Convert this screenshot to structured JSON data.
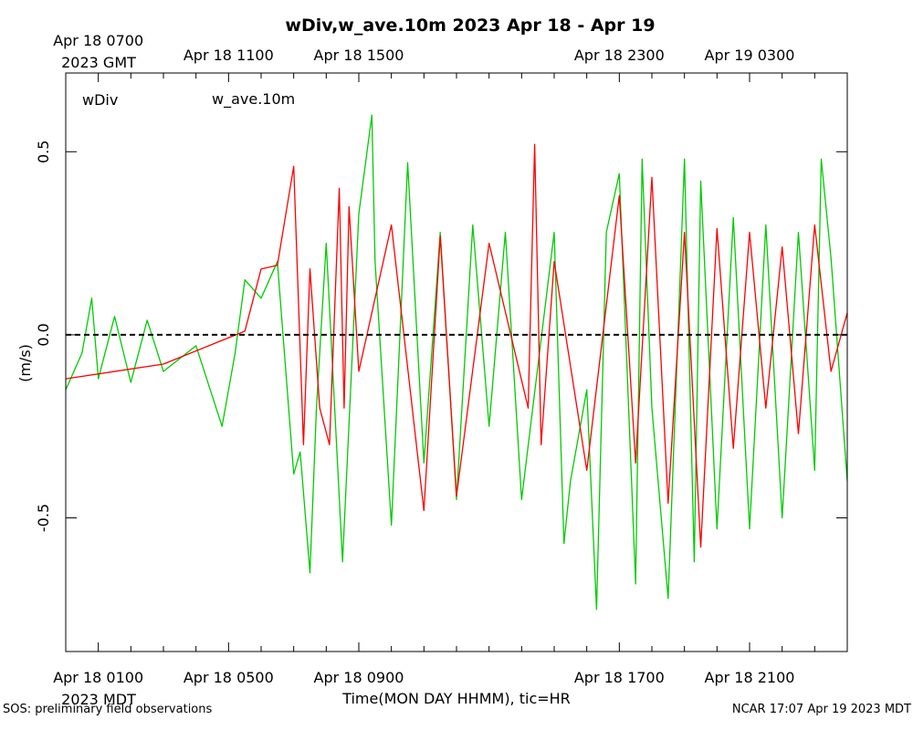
{
  "chart_data": {
    "type": "line",
    "title": "wDiv,w_ave.10m 2023 Apr 18 - Apr 19",
    "ylabel": "(m/s)",
    "xlabel": "Time(MON DAY HHMM), tic=HR",
    "ylim": [
      -0.865,
      0.715
    ],
    "xlim": [
      0.0,
      24.0
    ],
    "x_units": "hours after Apr 18 0000 MDT",
    "y_ticks": [
      0.5,
      0.0,
      -0.5
    ],
    "y_tick_labels": [
      "0.5",
      "0.0",
      "-0.5"
    ],
    "bottom_axis": {
      "timezone_label": "2023 MDT",
      "ticks": [
        {
          "hour": 1,
          "label": "Apr 18 0100"
        },
        {
          "hour": 5,
          "label": "Apr 18 0500"
        },
        {
          "hour": 9,
          "label": "Apr 18 0900"
        },
        {
          "hour": 17,
          "label": "Apr 18 1700"
        },
        {
          "hour": 21,
          "label": "Apr 18 2100"
        }
      ]
    },
    "top_axis": {
      "timezone_label": "2023 GMT",
      "ticks": [
        {
          "hour": 1,
          "label": "Apr 18 0700"
        },
        {
          "hour": 5,
          "label": "Apr 18 1100"
        },
        {
          "hour": 9,
          "label": "Apr 18 1500"
        },
        {
          "hour": 17,
          "label": "Apr 18 2300"
        },
        {
          "hour": 21,
          "label": "Apr 19 0300"
        }
      ]
    },
    "reference_line": {
      "y": 0.0,
      "style": "dashed",
      "color": "#000000"
    },
    "grid": false,
    "legend_placement": "top-left, inside plot",
    "series": [
      {
        "name": "wDiv",
        "color": "#ff0000",
        "x": [
          0.0,
          3.0,
          5.5,
          6.0,
          6.5,
          7.0,
          7.3,
          7.5,
          7.8,
          8.1,
          8.4,
          8.55,
          8.7,
          9.0,
          10.0,
          11.0,
          11.5,
          12.0,
          13.0,
          14.2,
          14.4,
          14.6,
          15.0,
          16.0,
          17.0,
          17.5,
          18.0,
          18.5,
          19.0,
          19.5,
          20.0,
          20.5,
          21.0,
          21.5,
          22.0,
          22.5,
          23.0,
          23.5,
          24.0
        ],
        "y": [
          -0.12,
          -0.08,
          0.01,
          0.18,
          0.19,
          0.46,
          -0.3,
          0.18,
          -0.2,
          -0.3,
          0.4,
          -0.2,
          0.35,
          -0.1,
          0.3,
          -0.48,
          0.27,
          -0.44,
          0.25,
          -0.2,
          0.52,
          -0.3,
          0.2,
          -0.37,
          0.38,
          -0.35,
          0.43,
          -0.46,
          0.28,
          -0.58,
          0.29,
          -0.31,
          0.28,
          -0.2,
          0.24,
          -0.27,
          0.3,
          -0.1,
          0.06
        ]
      },
      {
        "name": "w_ave.10m",
        "color": "#00cc00",
        "x": [
          0.0,
          0.5,
          0.8,
          1.0,
          1.5,
          2.0,
          2.5,
          3.0,
          4.0,
          4.8,
          5.2,
          5.5,
          6.0,
          6.5,
          7.0,
          7.2,
          7.5,
          7.7,
          8.0,
          8.5,
          9.0,
          9.4,
          9.5,
          10.0,
          10.5,
          11.0,
          11.5,
          12.0,
          12.5,
          13.0,
          13.5,
          14.0,
          15.0,
          15.3,
          15.5,
          16.0,
          16.3,
          16.6,
          17.0,
          17.5,
          17.7,
          18.0,
          18.5,
          19.0,
          19.3,
          19.5,
          20.0,
          20.5,
          21.0,
          21.5,
          22.0,
          22.5,
          23.0,
          23.2,
          23.5,
          24.0
        ],
        "y": [
          -0.15,
          -0.05,
          0.1,
          -0.12,
          0.05,
          -0.13,
          0.04,
          -0.1,
          -0.03,
          -0.25,
          -0.05,
          0.15,
          0.1,
          0.2,
          -0.38,
          -0.32,
          -0.65,
          -0.2,
          0.25,
          -0.62,
          0.33,
          0.6,
          0.2,
          -0.52,
          0.47,
          -0.35,
          0.28,
          -0.45,
          0.3,
          -0.25,
          0.28,
          -0.45,
          0.28,
          -0.57,
          -0.4,
          -0.15,
          -0.75,
          0.28,
          0.44,
          -0.68,
          0.48,
          -0.2,
          -0.72,
          0.48,
          -0.62,
          0.42,
          -0.53,
          0.32,
          -0.53,
          0.3,
          -0.5,
          0.28,
          -0.37,
          0.48,
          0.21,
          -0.4
        ]
      }
    ],
    "annotations": {
      "bottom_left": "SOS: preliminary field observations",
      "bottom_right": "NCAR 17:07 Apr 19 2023 MDT"
    }
  }
}
